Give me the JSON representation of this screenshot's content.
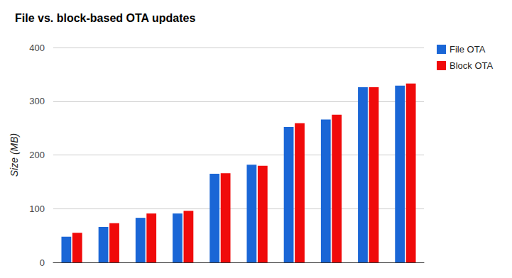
{
  "chart_data": {
    "type": "bar",
    "title": "File vs. block-based OTA updates",
    "y_label": "Size (MB)",
    "categories": [
      null,
      null,
      null,
      null,
      null,
      null,
      null,
      null,
      null,
      null
    ],
    "series": [
      {
        "name": "File OTA",
        "color": "#1a66d6",
        "values": [
          48,
          66,
          83,
          91,
          165,
          182,
          252,
          266,
          326,
          329
        ]
      },
      {
        "name": "Block OTA",
        "color": "#f00a0a",
        "values": [
          55,
          73,
          91,
          96,
          166,
          180,
          259,
          275,
          326,
          333
        ]
      }
    ],
    "ylim": [
      0,
      400
    ],
    "yticks": [
      0,
      100,
      200,
      300,
      400
    ],
    "grid": true,
    "legend": "right",
    "tick_labels": "y"
  }
}
